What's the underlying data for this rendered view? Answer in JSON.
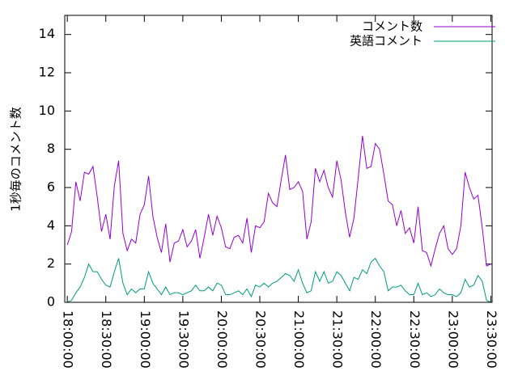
{
  "chart_data": {
    "type": "line",
    "y_label": "1秒毎のコメント数",
    "x": [
      "18:00:00",
      "18:03:20",
      "18:06:40",
      "18:10:00",
      "18:13:20",
      "18:16:40",
      "18:20:00",
      "18:23:20",
      "18:26:40",
      "18:30:00",
      "18:33:20",
      "18:36:40",
      "18:40:00",
      "18:43:20",
      "18:46:40",
      "18:50:00",
      "18:53:20",
      "18:56:40",
      "19:00:00",
      "19:03:20",
      "19:06:40",
      "19:10:00",
      "19:13:20",
      "19:16:40",
      "19:20:00",
      "19:23:20",
      "19:26:40",
      "19:30:00",
      "19:33:20",
      "19:36:40",
      "19:40:00",
      "19:43:20",
      "19:46:40",
      "19:50:00",
      "19:53:20",
      "19:56:40",
      "20:00:00",
      "20:03:20",
      "20:06:40",
      "20:10:00",
      "20:13:20",
      "20:16:40",
      "20:20:00",
      "20:23:20",
      "20:26:40",
      "20:30:00",
      "20:33:20",
      "20:36:40",
      "20:40:00",
      "20:43:20",
      "20:46:40",
      "20:50:00",
      "20:53:20",
      "20:56:40",
      "21:00:00",
      "21:03:20",
      "21:06:40",
      "21:10:00",
      "21:13:20",
      "21:16:40",
      "21:20:00",
      "21:23:20",
      "21:26:40",
      "21:30:00",
      "21:33:20",
      "21:36:40",
      "21:40:00",
      "21:43:20",
      "21:46:40",
      "21:50:00",
      "21:53:20",
      "21:56:40",
      "22:00:00",
      "22:03:20",
      "22:06:40",
      "22:10:00",
      "22:13:20",
      "22:16:40",
      "22:20:00",
      "22:23:20",
      "22:26:40",
      "22:30:00",
      "22:33:20",
      "22:36:40",
      "22:40:00",
      "22:43:20",
      "22:46:40",
      "22:50:00",
      "22:53:20",
      "22:56:40",
      "23:00:00",
      "23:03:20",
      "23:06:40",
      "23:10:00",
      "23:13:20",
      "23:16:40",
      "23:20:00",
      "23:23:20",
      "23:26:40",
      "23:30:00"
    ],
    "series": [
      {
        "name": "コメント数",
        "color": "#9400d3",
        "values": [
          3.0,
          3.7,
          6.3,
          5.3,
          6.8,
          6.7,
          7.1,
          5.5,
          3.7,
          4.6,
          3.3,
          6.1,
          7.4,
          3.6,
          2.7,
          3.3,
          3.1,
          4.6,
          5.1,
          6.6,
          4.5,
          3.4,
          2.6,
          4.1,
          2.1,
          3.1,
          3.2,
          3.8,
          2.9,
          3.2,
          3.8,
          2.3,
          3.4,
          4.6,
          3.5,
          4.5,
          3.9,
          2.9,
          2.8,
          3.4,
          3.5,
          3.1,
          4.4,
          2.6,
          4.0,
          3.9,
          4.2,
          5.7,
          5.2,
          5.0,
          6.4,
          7.7,
          5.9,
          6.0,
          6.3,
          5.8,
          3.3,
          4.2,
          7.0,
          6.3,
          6.9,
          6.0,
          5.5,
          7.4,
          6.4,
          4.7,
          3.4,
          4.4,
          6.5,
          8.7,
          7.0,
          7.1,
          8.3,
          8.0,
          6.7,
          5.3,
          5.1,
          4.0,
          4.8,
          3.6,
          3.9,
          3.1,
          5.0,
          2.7,
          2.6,
          1.9,
          2.8,
          3.6,
          4.0,
          2.8,
          2.5,
          2.8,
          4.0,
          6.8,
          6.0,
          5.4,
          5.6,
          3.9,
          1.9,
          2.0
        ]
      },
      {
        "name": "英語コメント",
        "color": "#009e73",
        "values": [
          0.0,
          0.1,
          0.5,
          0.8,
          1.3,
          2.0,
          1.6,
          1.6,
          1.2,
          0.9,
          0.8,
          1.6,
          2.3,
          1.0,
          0.4,
          0.7,
          0.5,
          0.7,
          0.7,
          1.6,
          1.0,
          0.7,
          0.4,
          0.8,
          0.4,
          0.5,
          0.5,
          0.4,
          0.5,
          0.6,
          0.9,
          0.6,
          0.6,
          0.8,
          0.6,
          1.0,
          0.9,
          0.4,
          0.4,
          0.5,
          0.6,
          0.4,
          0.7,
          0.3,
          0.9,
          0.8,
          1.0,
          0.8,
          1.0,
          1.1,
          1.3,
          1.5,
          1.4,
          1.1,
          1.7,
          1.0,
          0.5,
          0.6,
          1.6,
          1.1,
          1.6,
          1.0,
          1.1,
          1.6,
          1.4,
          1.0,
          0.6,
          1.3,
          1.2,
          1.7,
          1.5,
          2.1,
          2.3,
          1.9,
          1.6,
          0.6,
          0.8,
          0.8,
          0.9,
          0.6,
          0.4,
          0.4,
          1.0,
          0.4,
          0.5,
          0.3,
          0.4,
          0.7,
          0.5,
          0.4,
          0.4,
          0.3,
          0.5,
          1.2,
          0.8,
          0.9,
          1.4,
          1.1,
          0.1,
          0.0
        ]
      }
    ],
    "xlim": [
      "17:58:00",
      "23:31:00"
    ],
    "xticks": [
      "18:00:00",
      "18:30:00",
      "19:00:00",
      "19:30:00",
      "20:00:00",
      "20:30:00",
      "21:00:00",
      "21:30:00",
      "22:00:00",
      "22:30:00",
      "23:00:00",
      "23:30:00"
    ],
    "ylim": [
      0,
      15
    ],
    "yticks": [
      0,
      2,
      4,
      6,
      8,
      10,
      12,
      14
    ],
    "legend": "top-right"
  }
}
